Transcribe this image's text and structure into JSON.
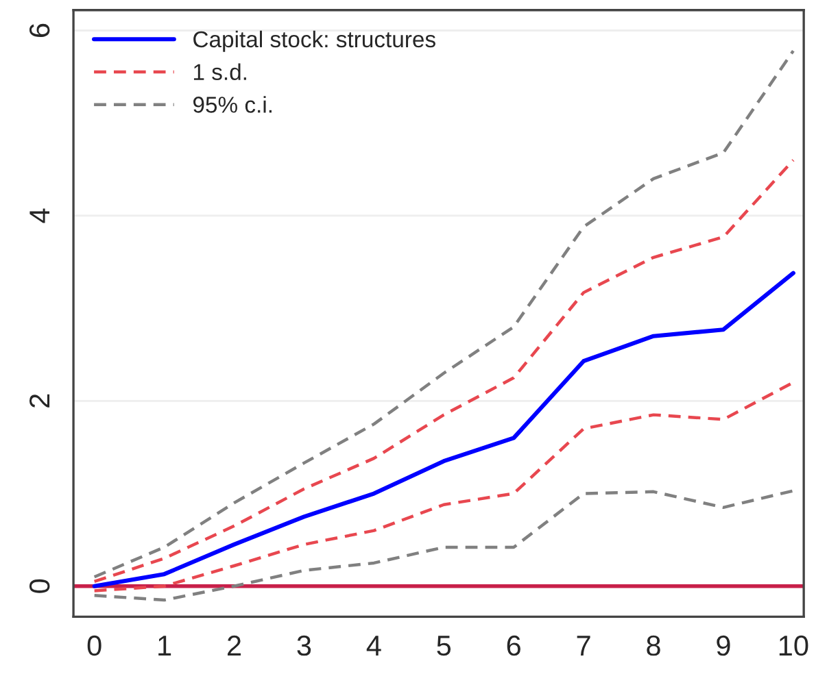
{
  "chart_data": {
    "type": "line",
    "x": [
      0,
      1,
      2,
      3,
      4,
      5,
      6,
      7,
      8,
      9,
      10
    ],
    "series": [
      {
        "name": "Capital stock: structures",
        "color": "#0000ff",
        "line_style": "solid",
        "values": [
          0,
          0.13,
          0.45,
          0.75,
          1.0,
          1.35,
          1.6,
          2.43,
          2.7,
          2.77,
          3.38
        ]
      },
      {
        "name": "1 s.d.",
        "color": "#e8474f",
        "line_style": "dashed",
        "values": [
          0.05,
          0.3,
          0.65,
          1.05,
          1.38,
          1.85,
          2.25,
          3.17,
          3.55,
          3.77,
          4.6
        ]
      },
      {
        "name": "95% c.i.",
        "color": "#808080",
        "line_style": "dashed",
        "values": [
          0.1,
          0.42,
          0.9,
          1.33,
          1.75,
          2.3,
          2.8,
          3.88,
          4.4,
          4.68,
          5.78
        ]
      },
      {
        "color": "#e8474f",
        "line_style": "dashed",
        "values": [
          -0.05,
          0.0,
          0.22,
          0.45,
          0.6,
          0.88,
          1.0,
          1.7,
          1.85,
          1.8,
          2.2
        ]
      },
      {
        "color": "#808080",
        "line_style": "dashed",
        "values": [
          -0.1,
          -0.15,
          0.0,
          0.17,
          0.25,
          0.42,
          0.42,
          1.0,
          1.02,
          0.85,
          1.03
        ]
      }
    ],
    "xlim": [
      -0.3,
      10.15
    ],
    "xticks": [
      0,
      1,
      2,
      3,
      4,
      5,
      6,
      7,
      8,
      9,
      10
    ],
    "ylim": [
      -0.33,
      6.22
    ],
    "yticks": [
      0,
      2,
      4,
      6
    ],
    "ref_lines": [
      {
        "axis": "y",
        "value": 0,
        "color": "#c8204a"
      }
    ],
    "grid": "y",
    "legend": "top left"
  }
}
